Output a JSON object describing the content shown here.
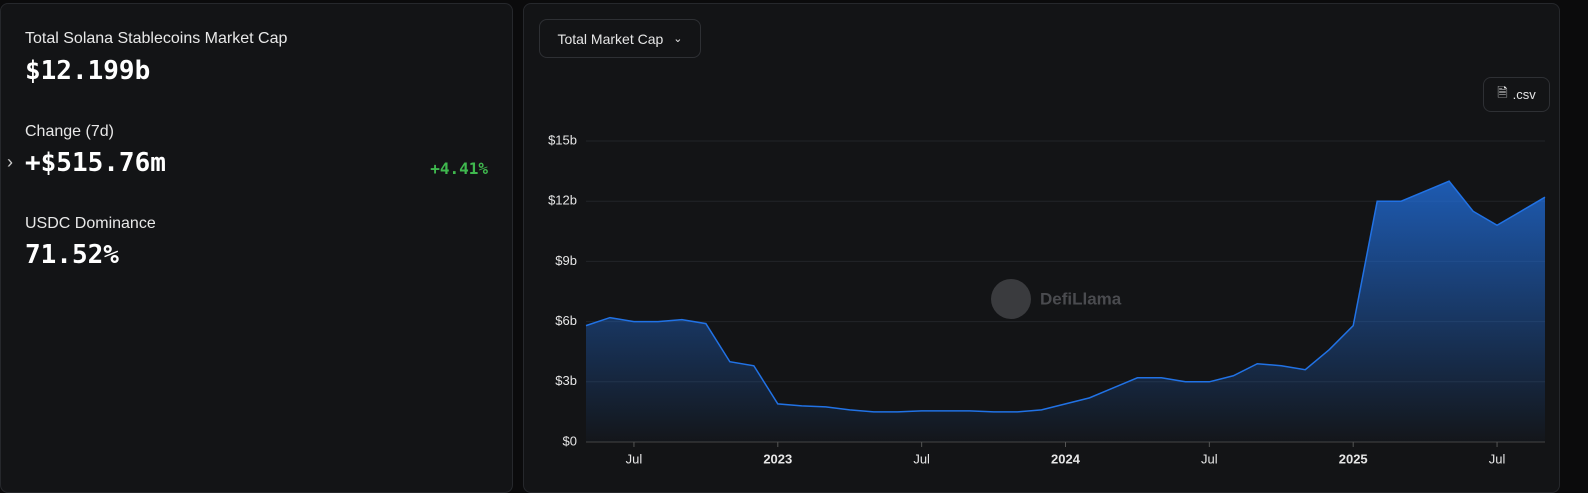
{
  "stats": {
    "market_cap_label": "Total Solana Stablecoins Market Cap",
    "market_cap_value": "$12.199b",
    "change_label": "Change (7d)",
    "change_value": "+$515.76m",
    "change_percent": "+4.41%",
    "dominance_label": "USDC Dominance",
    "dominance_value": "71.52%"
  },
  "controls": {
    "dropdown": "Total Market Cap",
    "csv_button": ".csv",
    "watermark": "DefiLlama"
  },
  "chart_data": {
    "type": "area",
    "color": "#2172e5",
    "grid": true,
    "x": [
      "2022-05",
      "2022-06",
      "2022-07",
      "2022-08",
      "2022-09",
      "2022-10",
      "2022-11",
      "2022-12",
      "2023-01",
      "2023-02",
      "2023-03",
      "2023-04",
      "2023-05",
      "2023-06",
      "2023-07",
      "2023-08",
      "2023-09",
      "2023-10",
      "2023-11",
      "2023-12",
      "2024-01",
      "2024-02",
      "2024-03",
      "2024-04",
      "2024-05",
      "2024-06",
      "2024-07",
      "2024-08",
      "2024-09",
      "2024-10",
      "2024-11",
      "2024-12",
      "2025-01",
      "2025-02",
      "2025-03",
      "2025-04",
      "2025-05",
      "2025-06",
      "2025-07",
      "2025-08",
      "2025-09"
    ],
    "values": [
      5.8,
      6.2,
      6.0,
      6.0,
      6.1,
      5.9,
      4.0,
      3.8,
      1.9,
      1.8,
      1.75,
      1.6,
      1.5,
      1.5,
      1.55,
      1.55,
      1.55,
      1.5,
      1.5,
      1.6,
      1.9,
      2.2,
      2.7,
      3.2,
      3.2,
      3.0,
      3.0,
      3.3,
      3.9,
      3.8,
      3.6,
      4.6,
      5.8,
      12.0,
      12.0,
      12.5,
      13.0,
      11.5,
      10.8,
      11.5,
      12.2
    ],
    "xlim": [
      "2022-05",
      "2025-09"
    ],
    "xticks": [
      {
        "value": "2022-07",
        "label": "Jul"
      },
      {
        "value": "2023-01",
        "label": "2023"
      },
      {
        "value": "2023-07",
        "label": "Jul"
      },
      {
        "value": "2024-01",
        "label": "2024"
      },
      {
        "value": "2024-07",
        "label": "Jul"
      },
      {
        "value": "2025-01",
        "label": "2025"
      },
      {
        "value": "2025-07",
        "label": "Jul"
      }
    ],
    "ylim": [
      0,
      15
    ],
    "yticks": [
      {
        "value": 0,
        "label": "$0"
      },
      {
        "value": 3,
        "label": "$3b"
      },
      {
        "value": 6,
        "label": "$6b"
      },
      {
        "value": 9,
        "label": "$9b"
      },
      {
        "value": 12,
        "label": "$12b"
      },
      {
        "value": 15,
        "label": "$15b"
      }
    ]
  }
}
